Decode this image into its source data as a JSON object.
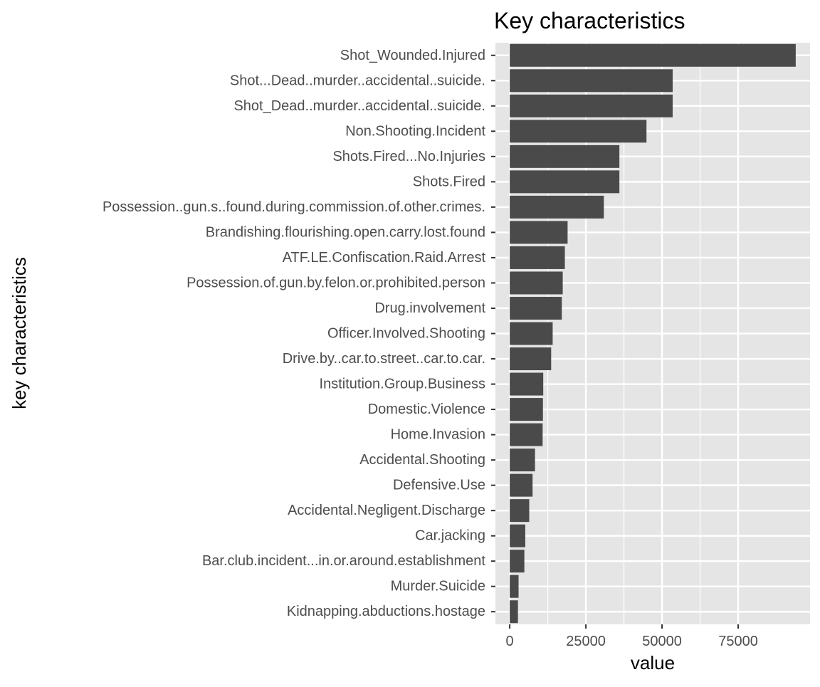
{
  "chart_data": {
    "type": "bar",
    "orientation": "horizontal",
    "title": "Key characteristics",
    "xlabel": "value",
    "ylabel": "key characteristics",
    "categories": [
      "Shot_Wounded.Injured",
      "Shot...Dead..murder..accidental..suicide.",
      "Shot_Dead..murder..accidental..suicide.",
      "Non.Shooting.Incident",
      "Shots.Fired...No.Injuries",
      "Shots.Fired",
      "Possession..gun.s..found.during.commission.of.other.crimes.",
      "Brandishing.flourishing.open.carry.lost.found",
      "ATF.LE.Confiscation.Raid.Arrest",
      "Possession.of.gun.by.felon.or.prohibited.person",
      "Drug.involvement",
      "Officer.Involved.Shooting",
      "Drive.by..car.to.street..car.to.car.",
      "Institution.Group.Business",
      "Domestic.Violence",
      "Home.Invasion",
      "Accidental.Shooting",
      "Defensive.Use",
      "Accidental.Negligent.Discharge",
      "Car.jacking",
      "Bar.club.incident...in.or.around.establishment",
      "Murder.Suicide",
      "Kidnapping.abductions.hostage"
    ],
    "values": [
      93900,
      53500,
      53500,
      44900,
      36000,
      36000,
      30900,
      19000,
      18100,
      17400,
      17100,
      14100,
      13600,
      11000,
      10900,
      10800,
      8300,
      7500,
      6400,
      5100,
      4800,
      2900,
      2700
    ],
    "xlim": [
      -4700,
      98600
    ],
    "xticks": [
      0,
      25000,
      50000,
      75000
    ],
    "xtick_labels": [
      "0",
      "25000",
      "50000",
      "75000"
    ],
    "grid": true,
    "bar_color": "#4a4a4a",
    "panel_color": "#e5e5e5",
    "grid_color": "#ffffff"
  }
}
